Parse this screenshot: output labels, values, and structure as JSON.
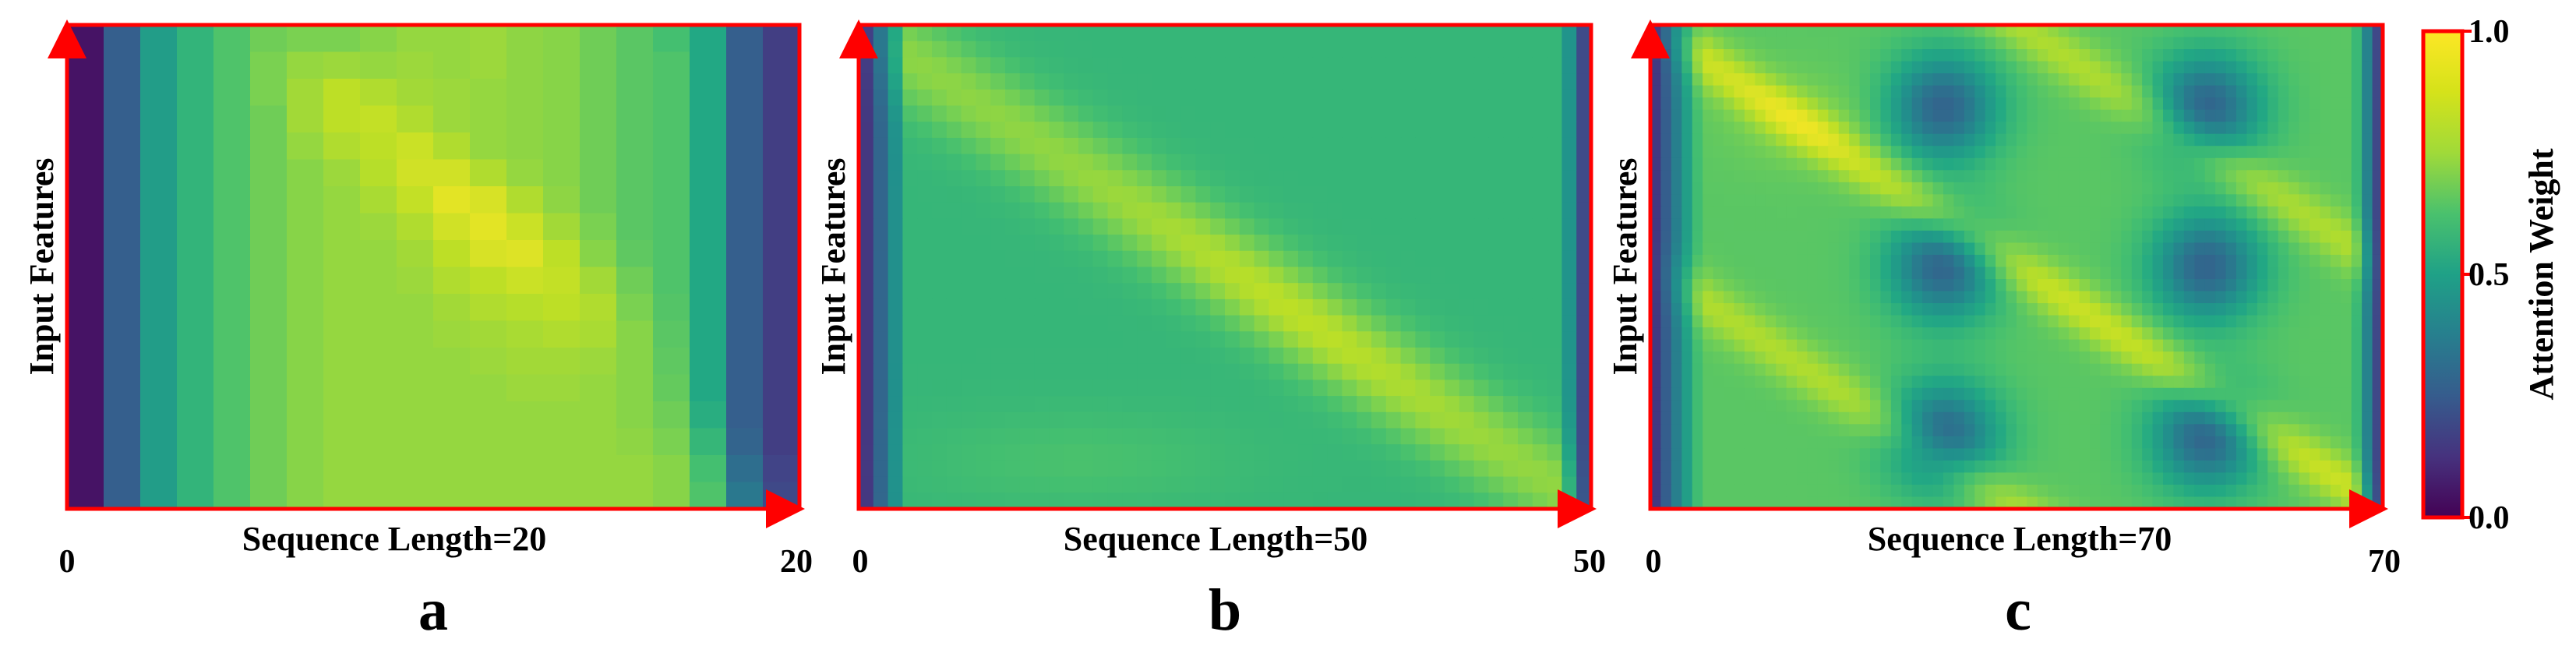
{
  "chart_data": [
    {
      "panel": "a",
      "type": "heatmap",
      "xlabel": "Sequence Length=20",
      "ylabel": "Input Features",
      "x_ticks": [
        "0",
        "20"
      ],
      "xlim": [
        0,
        20
      ],
      "grid": {
        "cols": 20,
        "rows": 18
      },
      "values": [
        [
          0.05,
          0.3,
          0.55,
          0.65,
          0.72,
          0.78,
          0.8,
          0.8,
          0.82,
          0.84,
          0.84,
          0.85,
          0.83,
          0.82,
          0.78,
          0.74,
          0.7,
          0.6,
          0.3,
          0.18
        ],
        [
          0.05,
          0.3,
          0.55,
          0.65,
          0.72,
          0.8,
          0.84,
          0.85,
          0.84,
          0.85,
          0.84,
          0.85,
          0.83,
          0.82,
          0.78,
          0.74,
          0.72,
          0.6,
          0.3,
          0.18
        ],
        [
          0.05,
          0.3,
          0.55,
          0.65,
          0.72,
          0.8,
          0.86,
          0.9,
          0.88,
          0.86,
          0.85,
          0.84,
          0.83,
          0.82,
          0.78,
          0.74,
          0.72,
          0.6,
          0.3,
          0.18
        ],
        [
          0.05,
          0.3,
          0.55,
          0.65,
          0.72,
          0.78,
          0.86,
          0.9,
          0.91,
          0.88,
          0.85,
          0.84,
          0.83,
          0.82,
          0.78,
          0.74,
          0.72,
          0.6,
          0.3,
          0.18
        ],
        [
          0.05,
          0.3,
          0.55,
          0.65,
          0.72,
          0.78,
          0.84,
          0.88,
          0.9,
          0.92,
          0.88,
          0.84,
          0.83,
          0.82,
          0.78,
          0.74,
          0.72,
          0.6,
          0.3,
          0.18
        ],
        [
          0.05,
          0.3,
          0.55,
          0.65,
          0.72,
          0.78,
          0.82,
          0.85,
          0.89,
          0.93,
          0.93,
          0.88,
          0.84,
          0.82,
          0.78,
          0.74,
          0.72,
          0.6,
          0.3,
          0.18
        ],
        [
          0.05,
          0.3,
          0.55,
          0.65,
          0.72,
          0.78,
          0.82,
          0.84,
          0.87,
          0.91,
          0.96,
          0.94,
          0.88,
          0.83,
          0.78,
          0.74,
          0.72,
          0.6,
          0.3,
          0.18
        ],
        [
          0.05,
          0.3,
          0.55,
          0.65,
          0.72,
          0.78,
          0.82,
          0.84,
          0.85,
          0.88,
          0.93,
          0.96,
          0.92,
          0.86,
          0.8,
          0.74,
          0.72,
          0.6,
          0.3,
          0.18
        ],
        [
          0.05,
          0.3,
          0.55,
          0.65,
          0.72,
          0.78,
          0.82,
          0.84,
          0.84,
          0.86,
          0.9,
          0.94,
          0.95,
          0.9,
          0.82,
          0.75,
          0.72,
          0.6,
          0.3,
          0.18
        ],
        [
          0.05,
          0.3,
          0.55,
          0.65,
          0.72,
          0.78,
          0.82,
          0.84,
          0.84,
          0.85,
          0.88,
          0.9,
          0.92,
          0.91,
          0.86,
          0.78,
          0.72,
          0.6,
          0.3,
          0.18
        ],
        [
          0.05,
          0.3,
          0.55,
          0.65,
          0.72,
          0.78,
          0.82,
          0.84,
          0.84,
          0.84,
          0.86,
          0.88,
          0.89,
          0.9,
          0.88,
          0.8,
          0.73,
          0.6,
          0.3,
          0.18
        ],
        [
          0.05,
          0.3,
          0.55,
          0.65,
          0.72,
          0.78,
          0.82,
          0.84,
          0.84,
          0.84,
          0.85,
          0.86,
          0.87,
          0.88,
          0.87,
          0.82,
          0.74,
          0.6,
          0.3,
          0.18
        ],
        [
          0.05,
          0.3,
          0.55,
          0.65,
          0.72,
          0.78,
          0.82,
          0.84,
          0.84,
          0.84,
          0.84,
          0.85,
          0.86,
          0.86,
          0.85,
          0.82,
          0.75,
          0.6,
          0.3,
          0.18
        ],
        [
          0.05,
          0.3,
          0.55,
          0.65,
          0.72,
          0.78,
          0.82,
          0.84,
          0.84,
          0.84,
          0.84,
          0.84,
          0.85,
          0.85,
          0.84,
          0.82,
          0.76,
          0.6,
          0.3,
          0.18
        ],
        [
          0.05,
          0.3,
          0.55,
          0.65,
          0.72,
          0.78,
          0.82,
          0.84,
          0.84,
          0.84,
          0.84,
          0.84,
          0.84,
          0.84,
          0.84,
          0.82,
          0.78,
          0.62,
          0.3,
          0.18
        ],
        [
          0.05,
          0.3,
          0.55,
          0.65,
          0.72,
          0.78,
          0.82,
          0.84,
          0.84,
          0.84,
          0.84,
          0.84,
          0.84,
          0.84,
          0.84,
          0.83,
          0.8,
          0.66,
          0.32,
          0.18
        ],
        [
          0.05,
          0.3,
          0.55,
          0.65,
          0.72,
          0.78,
          0.82,
          0.84,
          0.84,
          0.84,
          0.84,
          0.84,
          0.84,
          0.84,
          0.84,
          0.84,
          0.82,
          0.7,
          0.36,
          0.2
        ],
        [
          0.05,
          0.3,
          0.55,
          0.65,
          0.72,
          0.78,
          0.82,
          0.84,
          0.84,
          0.84,
          0.84,
          0.84,
          0.84,
          0.84,
          0.84,
          0.84,
          0.82,
          0.72,
          0.4,
          0.22
        ]
      ]
    },
    {
      "panel": "b",
      "type": "heatmap",
      "xlabel": "Sequence Length=50",
      "ylabel": "Input Features",
      "x_ticks": [
        "0",
        "50"
      ],
      "xlim": [
        0,
        50
      ],
      "grid": {
        "cols": 50,
        "rows": 30
      },
      "pattern": "smooth field; dark blue left edge, strong yellow diagonal from top-left to bottom-right peaking near center, dark right edge"
    },
    {
      "panel": "c",
      "type": "heatmap",
      "xlabel": "Sequence Length=70",
      "ylabel": "Input Features",
      "x_ticks": [
        "0",
        "70"
      ],
      "xlim": [
        0,
        70
      ],
      "grid": {
        "cols": 70,
        "rows": 40
      },
      "pattern": "periodic blobs (3 rows x 2 columns of dark ellipses) with yellow diagonal streaks; dark left and right edges"
    }
  ],
  "colorbar": {
    "label": "Attention Weight",
    "ticks": [
      "1.0",
      "0.5",
      "0.0"
    ],
    "range": [
      0.0,
      1.0
    ],
    "colormap": "viridis"
  },
  "panel_letters": [
    "a",
    "b",
    "c"
  ],
  "colors": {
    "axis": "#ff0000",
    "background": "#ffffff",
    "text": "#000000"
  }
}
